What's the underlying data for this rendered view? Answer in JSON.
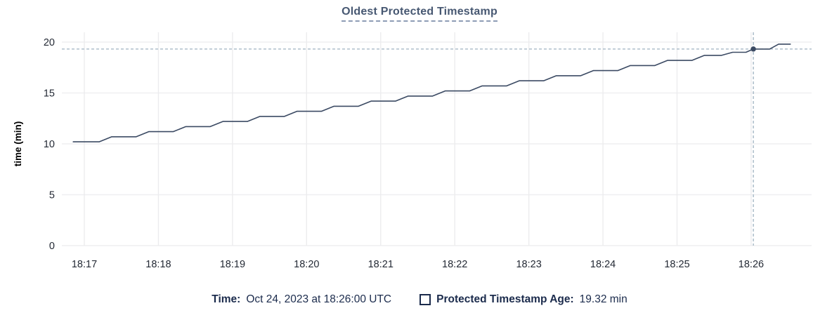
{
  "title": "Oldest Protected Timestamp",
  "legend": {
    "time_label": "Time:",
    "time_value": "Oct 24, 2023 at 18:26:00 UTC",
    "series_label": "Protected Timestamp Age:",
    "series_value": "19.32 min"
  },
  "colors": {
    "title": "#475872",
    "title_underline": "#8e9cb5",
    "legend_text": "#1b2b4c",
    "series_line": "#3b4a63",
    "hover_dot": "#3b4a63",
    "crosshair": "#9fb2c1",
    "grid_horizontal": "#efeff1",
    "grid_vertical": "#ececee",
    "tick_text": "#242a35",
    "axis_label_text": "#000000",
    "background": "#ffffff"
  },
  "chart_data": {
    "type": "line",
    "title": "Oldest Protected Timestamp",
    "xlabel": "",
    "ylabel": "time (min)",
    "ylim": [
      0,
      20
    ],
    "yticks": [
      0,
      5,
      10,
      15,
      20
    ],
    "ytick_labels": [
      "0",
      "5",
      "10",
      "15",
      "20"
    ],
    "xtick_labels": [
      "18:17",
      "18:18",
      "18:19",
      "18:20",
      "18:21",
      "18:22",
      "18:23",
      "18:24",
      "18:25",
      "18:26"
    ],
    "xticks_minutes_after_1817": [
      0,
      1,
      2,
      3,
      4,
      5,
      6,
      7,
      8,
      9
    ],
    "grid": true,
    "legend_position": "bottom",
    "series": [
      {
        "name": "Protected Timestamp Age",
        "unit": "min",
        "points_x_minutes_after_1817": true,
        "points": [
          [
            -0.15,
            10.2
          ],
          [
            0.2,
            10.2
          ],
          [
            0.37,
            10.7
          ],
          [
            0.7,
            10.7
          ],
          [
            0.87,
            11.2
          ],
          [
            1.2,
            11.2
          ],
          [
            1.37,
            11.7
          ],
          [
            1.7,
            11.7
          ],
          [
            1.87,
            12.2
          ],
          [
            2.2,
            12.2
          ],
          [
            2.37,
            12.7
          ],
          [
            2.7,
            12.7
          ],
          [
            2.87,
            13.2
          ],
          [
            3.2,
            13.2
          ],
          [
            3.37,
            13.7
          ],
          [
            3.7,
            13.7
          ],
          [
            3.87,
            14.2
          ],
          [
            4.2,
            14.2
          ],
          [
            4.37,
            14.7
          ],
          [
            4.7,
            14.7
          ],
          [
            4.87,
            15.2
          ],
          [
            5.2,
            15.2
          ],
          [
            5.37,
            15.7
          ],
          [
            5.7,
            15.7
          ],
          [
            5.87,
            16.2
          ],
          [
            6.2,
            16.2
          ],
          [
            6.37,
            16.7
          ],
          [
            6.7,
            16.7
          ],
          [
            6.87,
            17.2
          ],
          [
            7.2,
            17.2
          ],
          [
            7.37,
            17.7
          ],
          [
            7.7,
            17.7
          ],
          [
            7.87,
            18.2
          ],
          [
            8.2,
            18.2
          ],
          [
            8.37,
            18.7
          ],
          [
            8.6,
            18.7
          ],
          [
            8.75,
            19.0
          ],
          [
            8.93,
            19.0
          ],
          [
            9.03,
            19.32
          ],
          [
            9.25,
            19.32
          ],
          [
            9.37,
            19.8
          ],
          [
            9.53,
            19.8
          ]
        ]
      }
    ],
    "hover": {
      "x_minutes_after_1817": 9.03,
      "time_label": "Oct 24, 2023 at 18:26:00 UTC",
      "value": 19.32,
      "value_label": "19.32 min"
    }
  }
}
